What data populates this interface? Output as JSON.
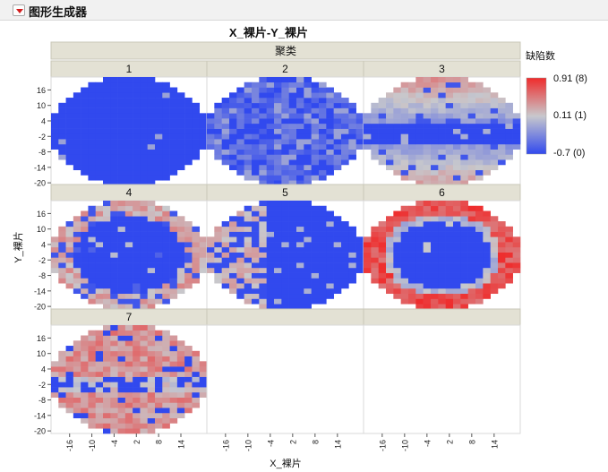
{
  "app": {
    "title": "图形生成器"
  },
  "chart_data": {
    "type": "heatmap",
    "title": "X_裸片-Y_裸片",
    "group_header": "聚类",
    "xlabel": "X_裸片",
    "ylabel": "Y_裸片",
    "x_ticks": [
      -16,
      -10,
      -4,
      2,
      8,
      14
    ],
    "y_ticks": [
      16,
      10,
      4,
      -2,
      -8,
      -14,
      -20
    ],
    "xlim": [
      -21,
      21
    ],
    "ylim": [
      -21,
      21
    ],
    "panels": [
      "1",
      "2",
      "3",
      "4",
      "5",
      "6",
      "7"
    ],
    "panel_patterns": [
      "low",
      "mostly-low",
      "horizontal-low-band",
      "low-center-high-ring",
      "low-right-high-left",
      "low-center-red-ring",
      "noisy-horizontal-band"
    ],
    "color_legend": {
      "title": "缺陷数",
      "labels": [
        "0.91 (8)",
        "0.11 (1)",
        "-0.7 (0)"
      ],
      "colors": [
        "#ef2b2b",
        "#c8c8cc",
        "#3149ee"
      ]
    }
  },
  "colors": {
    "low": "#3149ee",
    "mid": "#c8c8cc",
    "high": "#ef2b2b",
    "header_bg": "#e3e1d4",
    "grid": "#d9d9d9"
  }
}
